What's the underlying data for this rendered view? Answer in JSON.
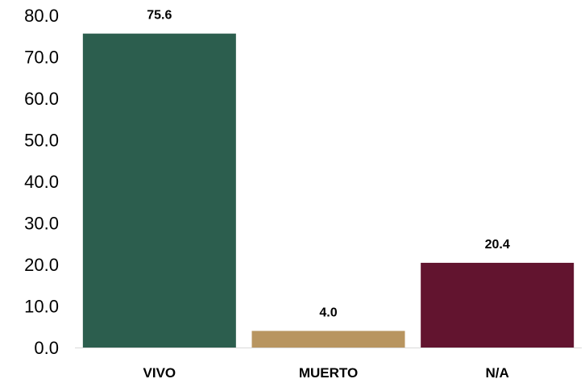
{
  "chart_data": {
    "type": "bar",
    "title": "",
    "xlabel": "",
    "ylabel": "",
    "categories": [
      "VIVO",
      "MUERTO",
      "N/A"
    ],
    "values": [
      75.6,
      4.0,
      20.4
    ],
    "value_labels": [
      "75.6",
      "4.0",
      "20.4"
    ],
    "colors": [
      "#2c5e4e",
      "#b89560",
      "#62142f"
    ],
    "ylim": [
      0,
      80
    ],
    "yticks": [
      0,
      10,
      20,
      30,
      40,
      50,
      60,
      70,
      80
    ],
    "ytick_labels": [
      "0.0",
      "10.0",
      "20.0",
      "30.0",
      "40.0",
      "50.0",
      "60.0",
      "70.0",
      "80.0"
    ],
    "grid": false,
    "legend": "none"
  }
}
